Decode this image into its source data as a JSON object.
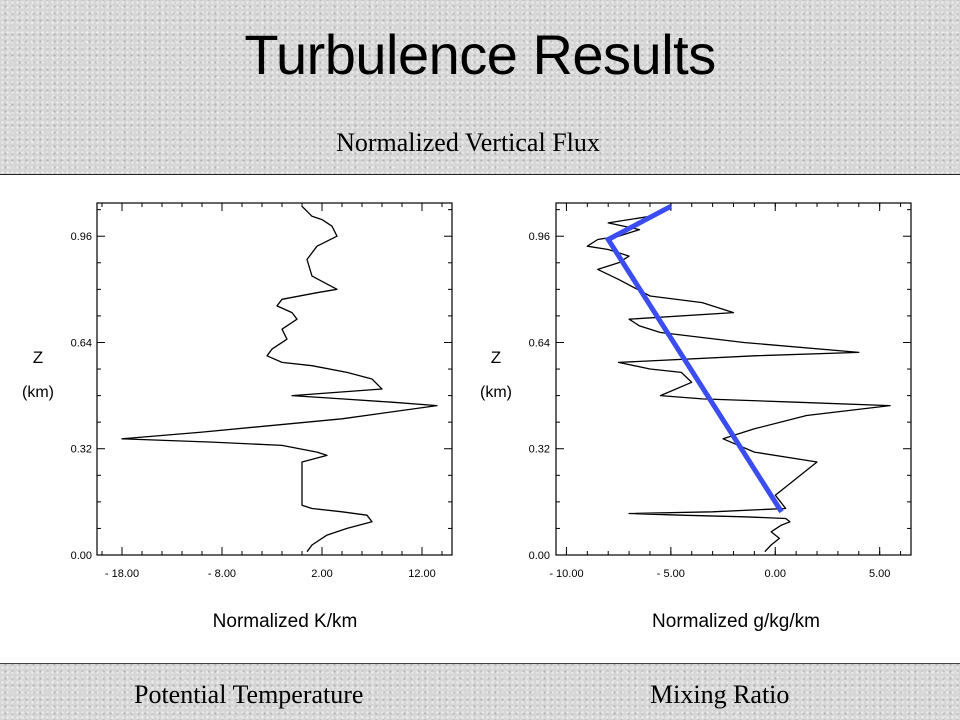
{
  "slide": {
    "title": "Turbulence Results",
    "subtitle": "Normalized Vertical Flux",
    "caption_left": "Potential Temperature",
    "caption_right": "Mixing Ratio"
  },
  "chart_data": [
    {
      "type": "line",
      "ylabel": "Z",
      "ylabel_unit": "(km)",
      "xlabel": "Normalized K/km",
      "xlim": [
        -20.5,
        15
      ],
      "ylim": [
        0,
        1.06
      ],
      "xticks": [
        -18,
        -8,
        2,
        12
      ],
      "xtick_labels": [
        "- 18.00",
        "- 8.00",
        "2.00",
        "12.00"
      ],
      "yticks": [
        0,
        0.32,
        0.64,
        0.96
      ],
      "ytick_labels": [
        "0.00",
        "0.32",
        "0.64",
        "0.96"
      ],
      "series": [
        {
          "color": "#000000",
          "x": [
            0.5,
            1.0,
            2.5,
            4.5,
            7.0,
            6.5,
            4.0,
            1.0,
            0.0,
            0.0,
            0.0,
            0.0,
            2.5,
            1.5,
            -2.0,
            -9.0,
            -18.0,
            -10.0,
            4.0,
            13.5,
            9.0,
            4.0,
            -1.0,
            8.0,
            7.0,
            4.5,
            1.0,
            -2.0,
            -3.5,
            -3.0,
            -1.5,
            -2.0,
            -0.5,
            -1.0,
            -2.5,
            -2.0,
            1.5,
            3.5,
            1.0,
            0.5,
            1.5,
            3.5,
            3.0,
            2.0,
            1.0,
            0.0
          ],
          "y": [
            0.01,
            0.03,
            0.06,
            0.08,
            0.1,
            0.12,
            0.13,
            0.14,
            0.15,
            0.2,
            0.26,
            0.28,
            0.3,
            0.31,
            0.33,
            0.34,
            0.35,
            0.37,
            0.41,
            0.45,
            0.46,
            0.47,
            0.48,
            0.5,
            0.53,
            0.55,
            0.57,
            0.58,
            0.6,
            0.62,
            0.65,
            0.68,
            0.71,
            0.73,
            0.75,
            0.77,
            0.79,
            0.8,
            0.84,
            0.89,
            0.93,
            0.96,
            0.99,
            1.01,
            1.02,
            1.05
          ]
        }
      ]
    },
    {
      "type": "line",
      "ylabel": "Z",
      "ylabel_unit": "(km)",
      "xlabel": "Normalized g/kg/km",
      "xlim": [
        -10.5,
        6.5
      ],
      "ylim": [
        0,
        1.06
      ],
      "xticks": [
        -10,
        -5,
        0,
        5
      ],
      "xtick_labels": [
        "- 10.00",
        "- 5.00",
        "0.00",
        "5.00"
      ],
      "yticks": [
        0,
        0.32,
        0.64,
        0.96
      ],
      "ytick_labels": [
        "0.00",
        "0.32",
        "0.64",
        "0.96"
      ],
      "series": [
        {
          "color": "#000000",
          "x": [
            -0.5,
            -0.2,
            0.2,
            -0.2,
            0.3,
            0.7,
            0.5,
            -1.5,
            -4.5,
            -7.0,
            -3.0,
            0.5,
            0.0,
            2.0,
            -1.0,
            -2.5,
            -1.0,
            1.5,
            5.5,
            1.0,
            -3.5,
            -5.5,
            -4.0,
            -4.5,
            -6.0,
            -7.5,
            -1.0,
            4.0,
            -1.5,
            -5.5,
            -6.5,
            -7.0,
            -2.0,
            -3.5,
            -6.0,
            -7.5,
            -8.5,
            -7.5,
            -7.0,
            -8.0,
            -9.0,
            -8.5,
            -7.5,
            -6.5,
            -8.0,
            -6.0,
            -5.5,
            -5.0
          ],
          "y": [
            0.01,
            0.03,
            0.05,
            0.07,
            0.09,
            0.1,
            0.11,
            0.115,
            0.12,
            0.125,
            0.13,
            0.14,
            0.18,
            0.28,
            0.31,
            0.35,
            0.38,
            0.42,
            0.45,
            0.46,
            0.47,
            0.48,
            0.52,
            0.55,
            0.56,
            0.58,
            0.6,
            0.61,
            0.64,
            0.67,
            0.69,
            0.71,
            0.73,
            0.76,
            0.78,
            0.83,
            0.86,
            0.88,
            0.9,
            0.92,
            0.93,
            0.95,
            0.96,
            0.98,
            1.0,
            1.02,
            1.03,
            1.05
          ]
        },
        {
          "name": "",
          "color": "#3b4cf0",
          "style": "annotation",
          "x": [
            0.3,
            -8.0,
            -5.0
          ],
          "y": [
            0.13,
            0.95,
            1.05
          ]
        }
      ]
    }
  ]
}
